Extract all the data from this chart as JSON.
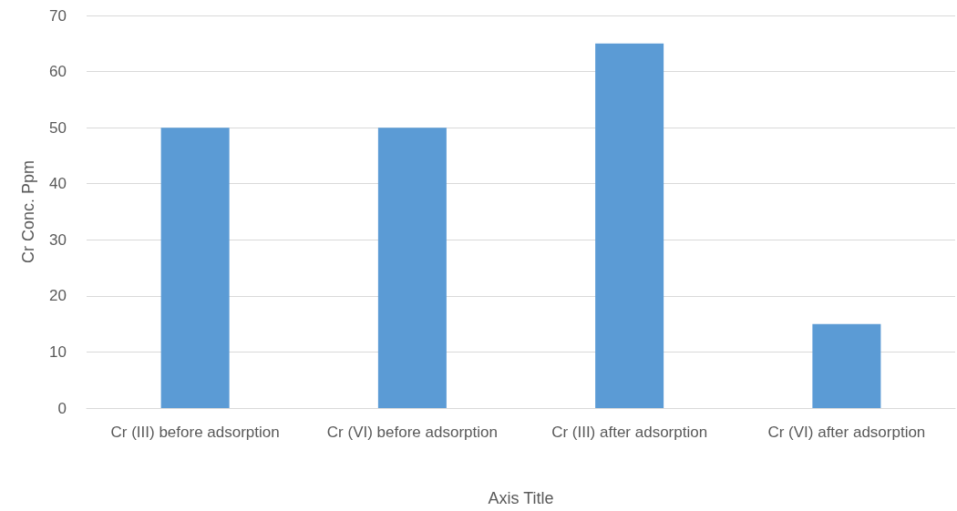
{
  "chart_data": {
    "type": "bar",
    "xlabel": "Axis Title",
    "ylabel": "Cr Conc. Ppm",
    "categories": [
      "Cr (III) before adsorption",
      "Cr (VI) before adsorption",
      "Cr (III) after adsorption",
      "Cr (VI) after adsorption"
    ],
    "values": [
      50,
      50,
      65,
      15
    ],
    "color": "#5b9bd5",
    "ylim": [
      0,
      70
    ],
    "yticks": [
      0,
      10,
      20,
      30,
      40,
      50,
      60,
      70
    ],
    "grid": "y"
  }
}
